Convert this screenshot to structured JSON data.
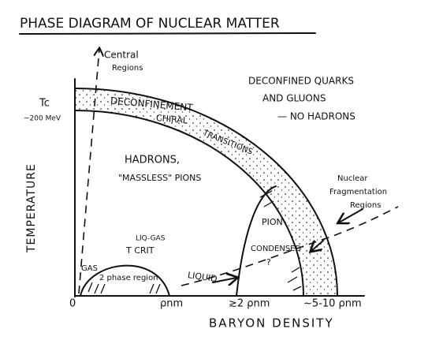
{
  "title": "PHASE DIAGRAM OF NUCLEAR MATTER",
  "axes": {
    "x_label": "BARYON DENSITY",
    "y_label": "TEMPERATURE",
    "x_ticks": [
      "0",
      "ρnm",
      "≳2 ρnm",
      "~5-10 ρnm"
    ]
  },
  "annotations": [
    "Central",
    "Regions",
    "Tc",
    "~200 MeV",
    "DECONFINEMENT",
    "CHIRAL",
    "TRANSITIONS",
    "DECONFINED QUARKS",
    "AND GLUONS",
    "— NO HADRONS",
    "HADRONS,",
    "\"MASSLESS\" PIONS",
    "Nuclear",
    "Fragmentation",
    "Regions",
    "PION",
    "CONDENSED",
    "?",
    "LIQ-GAS",
    "T CRIT",
    "GAS",
    "2 phase region",
    "LIQUID"
  ]
}
